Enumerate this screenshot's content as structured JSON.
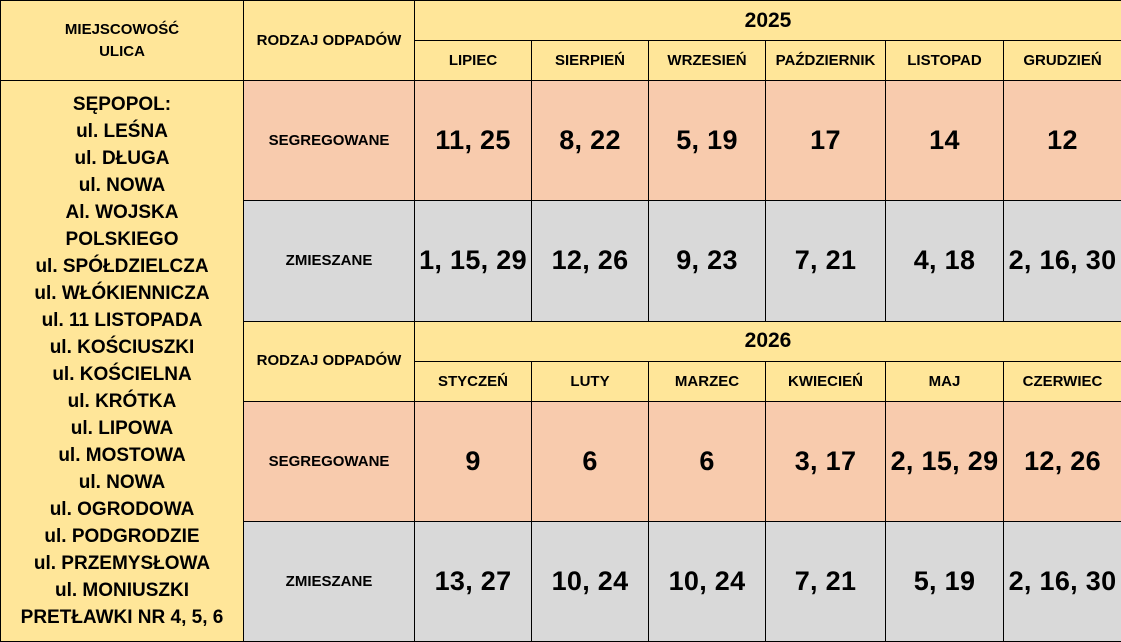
{
  "header": {
    "location_title_line1": "MIEJSCOWOŚĆ",
    "location_title_line2": "ULICA",
    "waste_type_title": "RODZAJ ODPADÓW"
  },
  "location": {
    "lines": [
      "SĘPOPOL:",
      "ul. LEŚNA",
      "ul. DŁUGA",
      "ul. NOWA",
      "Al. WOJSKA",
      "POLSKIEGO",
      "ul. SPÓŁDZIELCZA",
      "ul. WŁÓKIENNICZA",
      "ul. 11 LISTOPADA",
      "ul. KOŚCIUSZKI",
      "ul. KOŚCIELNA",
      "ul. KRÓTKA",
      "ul. LIPOWA",
      "ul. MOSTOWA",
      "ul. NOWA",
      "ul. OGRODOWA",
      "ul. PODGRODZIE",
      "ul. PRZEMYSŁOWA",
      "ul. MONIUSZKI",
      "PRETŁAWKI NR 4, 5, 6"
    ]
  },
  "blocks": [
    {
      "year": "2025",
      "waste_type_title": "RODZAJ ODPADÓW",
      "months": [
        "LIPIEC",
        "SIERPIEŃ",
        "WRZESIEŃ",
        "PAŹDZIERNIK",
        "LISTOPAD",
        "GRUDZIEŃ"
      ],
      "rows": [
        {
          "type": "SEGREGOWANE",
          "dates": [
            "11, 25",
            "8, 22",
            "5, 19",
            "17",
            "14",
            "12"
          ]
        },
        {
          "type": "ZMIESZANE",
          "dates": [
            "1, 15, 29",
            "12, 26",
            "9, 23",
            "7, 21",
            "4, 18",
            "2, 16, 30"
          ]
        }
      ]
    },
    {
      "year": "2026",
      "waste_type_title": "RODZAJ ODPADÓW",
      "months": [
        "STYCZEŃ",
        "LUTY",
        "MARZEC",
        "KWIECIEŃ",
        "MAJ",
        "CZERWIEC"
      ],
      "rows": [
        {
          "type": "SEGREGOWANE",
          "dates": [
            "9",
            "6",
            "6",
            "3, 17",
            "2, 15, 29",
            "12, 26"
          ]
        },
        {
          "type": "ZMIESZANE",
          "dates": [
            "13, 27",
            "10, 24",
            "10, 24",
            "7, 21",
            "5, 19",
            "2, 16, 30"
          ]
        }
      ]
    }
  ],
  "colors": {
    "header_yellow": "#ffe699",
    "segregowane_peach": "#f8cbad",
    "zmieszane_grey": "#d9d9d9",
    "border": "#000000"
  }
}
